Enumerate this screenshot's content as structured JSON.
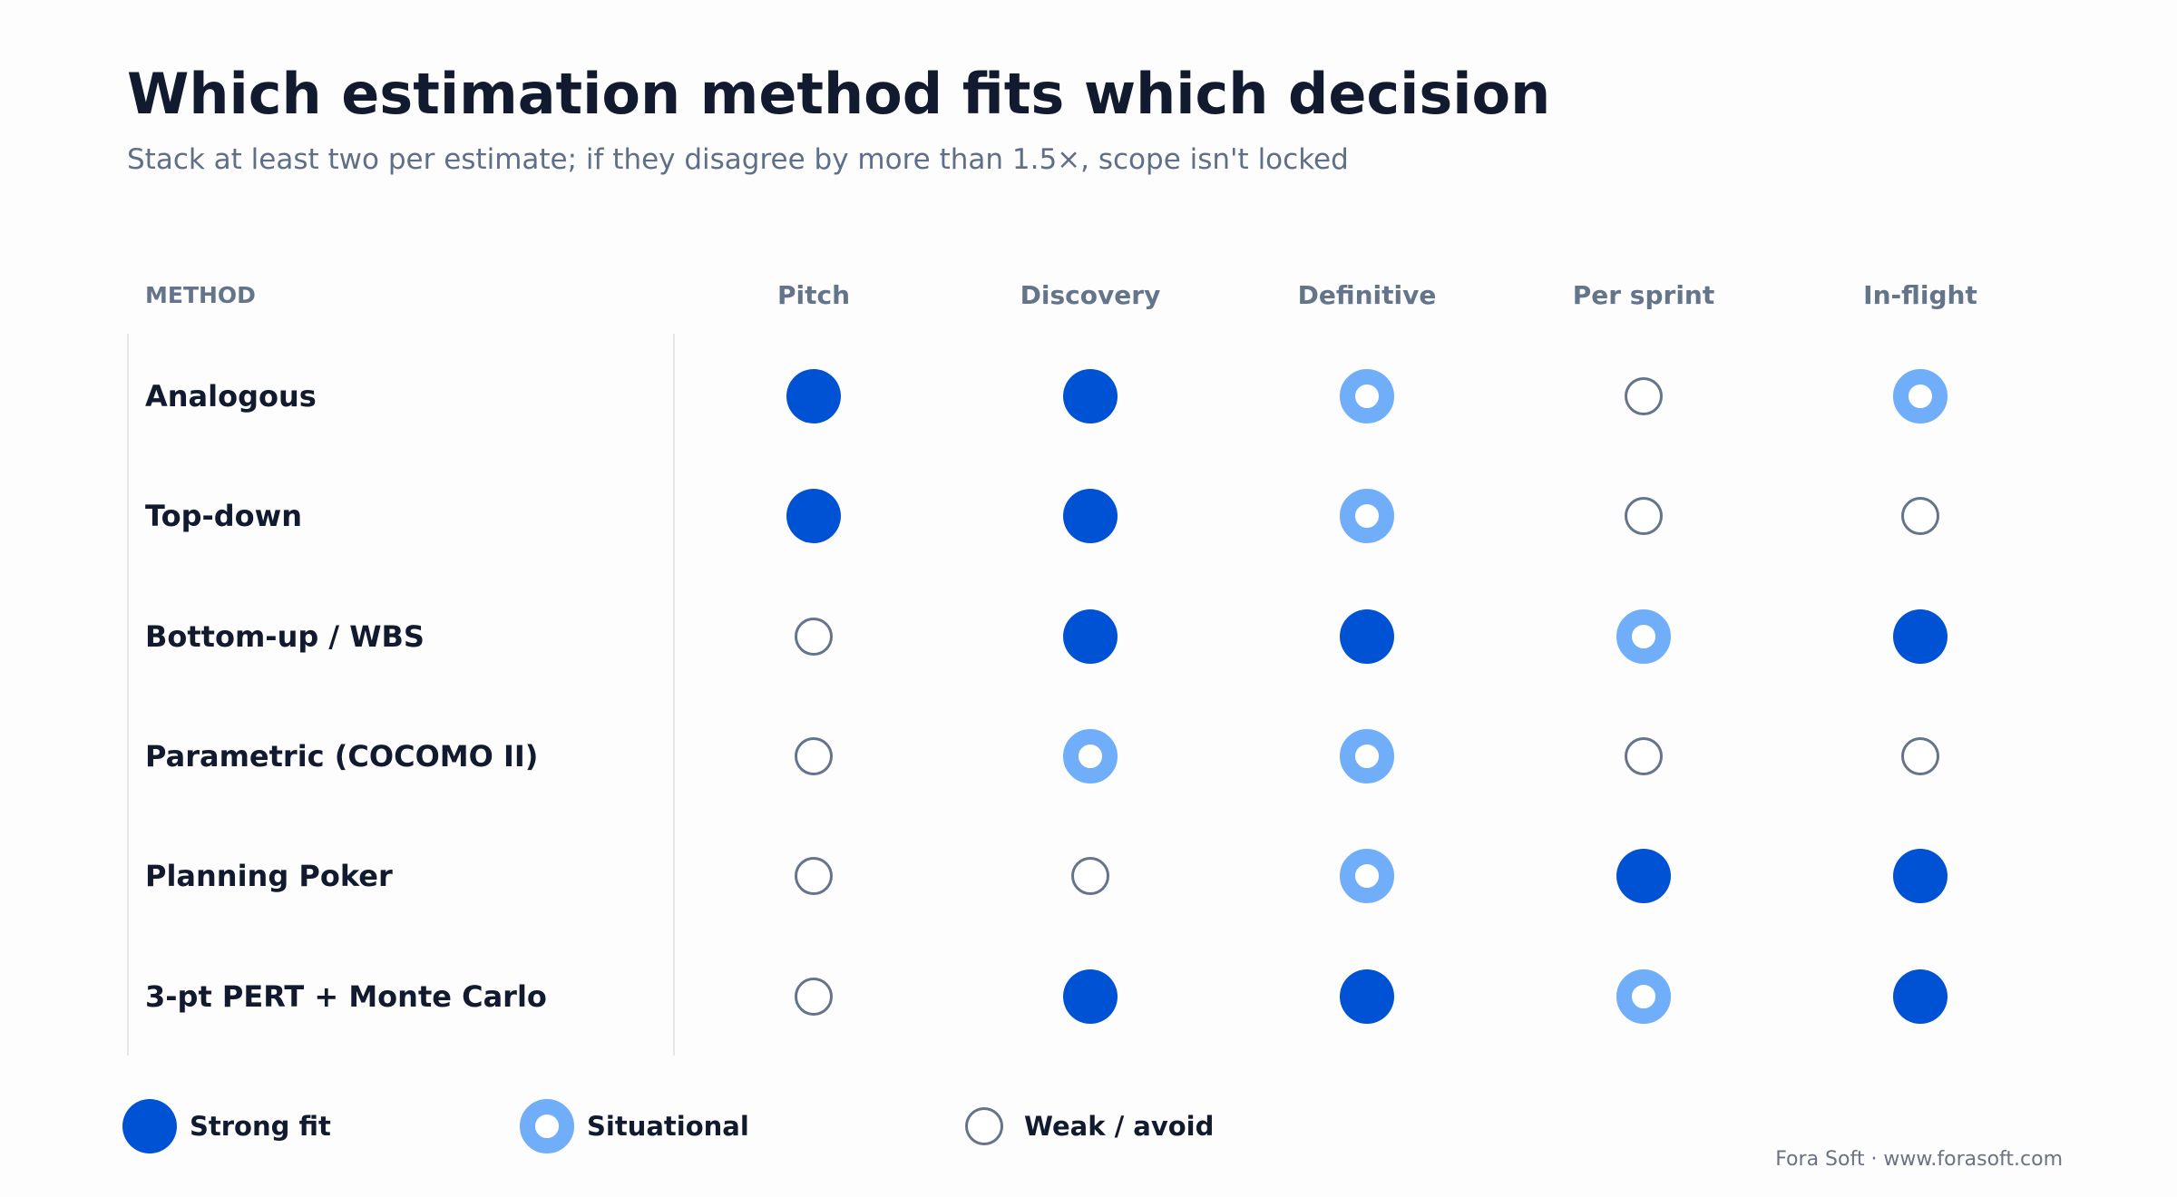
{
  "title": "Which estimation method fits which decision",
  "subtitle": "Stack at least two per estimate; if they disagree by more than 1.5×, scope isn't locked",
  "method_header": "METHOD",
  "columns": [
    "Pitch",
    "Discovery",
    "Definitive",
    "Per sprint",
    "In-flight"
  ],
  "rows": [
    {
      "label": "Analogous",
      "ratings": [
        "strong",
        "strong",
        "situational",
        "weak",
        "situational"
      ]
    },
    {
      "label": "Top-down",
      "ratings": [
        "strong",
        "strong",
        "situational",
        "weak",
        "weak"
      ]
    },
    {
      "label": "Bottom-up / WBS",
      "ratings": [
        "weak",
        "strong",
        "strong",
        "situational",
        "strong"
      ]
    },
    {
      "label": "Parametric (COCOMO II)",
      "ratings": [
        "weak",
        "situational",
        "situational",
        "weak",
        "weak"
      ]
    },
    {
      "label": "Planning Poker",
      "ratings": [
        "weak",
        "weak",
        "situational",
        "strong",
        "strong"
      ]
    },
    {
      "label": "3-pt PERT + Monte Carlo",
      "ratings": [
        "weak",
        "strong",
        "strong",
        "situational",
        "strong"
      ]
    }
  ],
  "legend": [
    {
      "key": "strong",
      "label": "Strong fit"
    },
    {
      "key": "situational",
      "label": "Situational"
    },
    {
      "key": "weak",
      "label": "Weak / avoid"
    }
  ],
  "colors": {
    "strong": "#0052d4",
    "situational": "#70aefa",
    "weak": "#64748b"
  },
  "footer": "Fora Soft · www.forasoft.com"
}
